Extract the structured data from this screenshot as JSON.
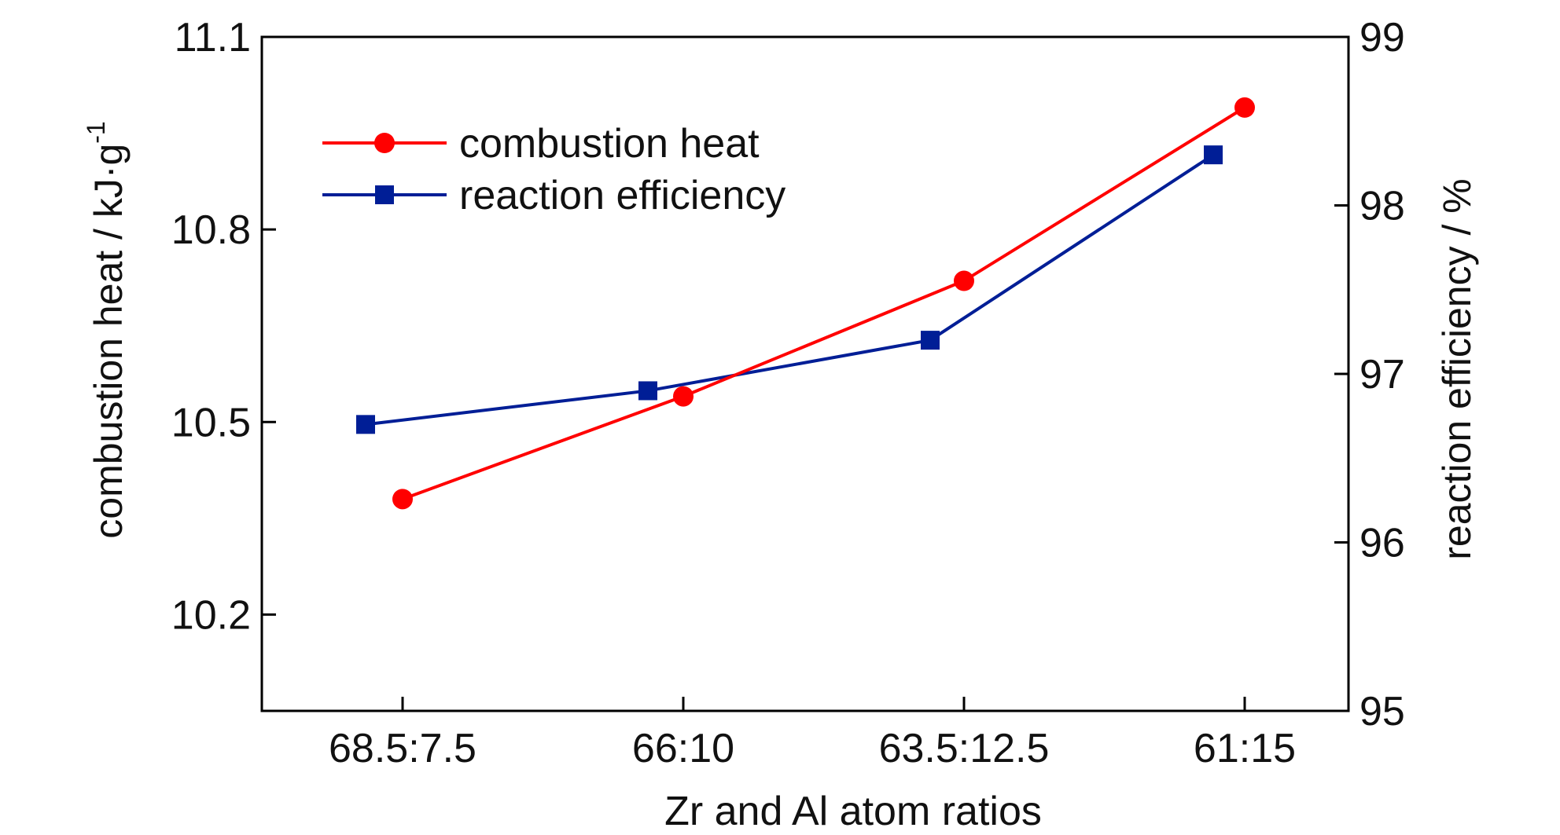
{
  "chart_data": {
    "type": "line",
    "categories": [
      "68.5:7.5",
      "66:10",
      "63.5:12.5",
      "61:15"
    ],
    "xlabel": "Zr and Al atom ratios",
    "ylabel_left": "combustion heat / kJ·g",
    "ylabel_left_superscript": "-1",
    "ylabel_right": "reaction efficiency / %",
    "ylim_left": [
      10.05,
      11.1
    ],
    "ylim_right": [
      95,
      99
    ],
    "yticks_left": [
      "10.2",
      "10.5",
      "10.8",
      "11.1"
    ],
    "yticks_right": [
      "95",
      "96",
      "97",
      "98",
      "99"
    ],
    "legend_position": "top-left",
    "series": [
      {
        "name": "combustion heat",
        "axis": "left",
        "color": "#ff0000",
        "marker": "circle",
        "values": [
          10.38,
          10.54,
          10.72,
          10.99
        ]
      },
      {
        "name": "reaction efficiency",
        "axis": "right",
        "color": "#001e96",
        "marker": "square",
        "values": [
          96.7,
          96.9,
          97.2,
          98.3
        ]
      }
    ]
  }
}
